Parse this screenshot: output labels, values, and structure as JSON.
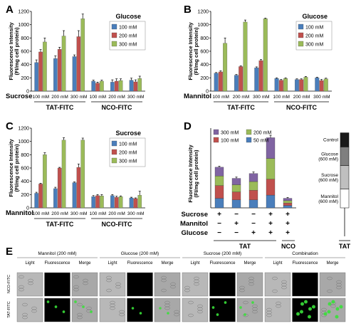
{
  "chart_data": [
    {
      "panel": "A",
      "type": "bar",
      "ylabel": "Fluorescence Intensity",
      "ylabel2": "(FI/mg cell protein)",
      "ylim": [
        0,
        1200
      ],
      "yticks": [
        "0",
        "200",
        "400",
        "600",
        "800",
        "1000",
        "1200"
      ],
      "legend_title": "Glucose",
      "series": [
        {
          "name": "100 mM",
          "color": "#4a7ebb",
          "values": [
            430,
            490,
            520,
            150,
            135,
            165
          ],
          "errors": [
            40,
            40,
            25,
            15,
            35,
            30
          ]
        },
        {
          "name": "200 mM",
          "color": "#c0504d",
          "values": [
            590,
            630,
            820,
            120,
            150,
            140
          ],
          "errors": [
            35,
            30,
            90,
            15,
            35,
            30
          ]
        },
        {
          "name": "300 mM",
          "color": "#9bbb59",
          "values": [
            740,
            830,
            1090,
            150,
            160,
            190
          ],
          "errors": [
            60,
            80,
            70,
            15,
            25,
            35
          ]
        }
      ],
      "categories": [
        "100 mM",
        "200 mM",
        "300 mM",
        "100 mM",
        "200 mM",
        "300 mM"
      ],
      "row_label": "Sucrose",
      "groups": [
        "TAT-FITC",
        "NCO-FITC"
      ]
    },
    {
      "panel": "B",
      "type": "bar",
      "ylabel": "Fluorescence Intensity",
      "ylabel2": "(FI/mg cell protein)",
      "ylim": [
        0,
        1200
      ],
      "yticks": [
        "0",
        "200",
        "400",
        "600",
        "800",
        "1000",
        "1200"
      ],
      "legend_title": "Glucose",
      "series": [
        {
          "name": "100 mM",
          "color": "#4a7ebb",
          "values": [
            270,
            240,
            350,
            190,
            175,
            200
          ],
          "errors": [
            10,
            10,
            15,
            10,
            10,
            10
          ]
        },
        {
          "name": "200 mM",
          "color": "#c0504d",
          "values": [
            290,
            370,
            460,
            165,
            175,
            160
          ],
          "errors": [
            15,
            10,
            15,
            10,
            10,
            15
          ]
        },
        {
          "name": "300 mM",
          "color": "#9bbb59",
          "values": [
            720,
            1040,
            1090,
            190,
            210,
            185
          ],
          "errors": [
            80,
            30,
            10,
            10,
            10,
            10
          ]
        }
      ],
      "categories": [
        "100 mM",
        "200 mM",
        "300 mM",
        "100 mM",
        "200 mM",
        "300 mM"
      ],
      "row_label": "Mannitol",
      "groups": [
        "TAT-FITC",
        "NCO-FITC"
      ]
    },
    {
      "panel": "C",
      "type": "bar",
      "ylabel": "Fluorescence Intensity",
      "ylabel2": "(FI/mg cell protein)",
      "ylim": [
        0,
        1200
      ],
      "yticks": [
        "0",
        "200",
        "400",
        "600",
        "800",
        "1000",
        "1200"
      ],
      "legend_title": "Sucrose",
      "series": [
        {
          "name": "100 mM",
          "color": "#4a7ebb",
          "values": [
            220,
            290,
            380,
            170,
            185,
            150
          ],
          "errors": [
            15,
            20,
            10,
            15,
            15,
            10
          ]
        },
        {
          "name": "200 mM",
          "color": "#c0504d",
          "values": [
            360,
            600,
            610,
            185,
            160,
            140
          ],
          "errors": [
            10,
            10,
            50,
            15,
            15,
            10
          ]
        },
        {
          "name": "300 mM",
          "color": "#9bbb59",
          "values": [
            800,
            1020,
            1020,
            180,
            170,
            190
          ],
          "errors": [
            30,
            35,
            30,
            20,
            10,
            60
          ]
        }
      ],
      "categories": [
        "100 mM",
        "200 mM",
        "300 mM",
        "100 mM",
        "200 mM",
        "300 mM"
      ],
      "row_label": "Mannitol",
      "groups": [
        "TAT-FITC",
        "NCO-FITC"
      ]
    },
    {
      "panel": "D",
      "type": "bar",
      "stacked": true,
      "ylabel": "Fluorescence Intensity",
      "ylabel2": "(FI/mg cell protein)",
      "ylim": [
        0,
        5000
      ],
      "series": [
        {
          "name": "50 mM",
          "color": "#4a7ebb",
          "values": [
            600,
            500,
            500,
            800,
            150
          ]
        },
        {
          "name": "100 mM",
          "color": "#c0504d",
          "values": [
            800,
            500,
            600,
            1000,
            150
          ]
        },
        {
          "name": "200 mM",
          "color": "#9bbb59",
          "values": [
            600,
            450,
            550,
            1300,
            150
          ]
        },
        {
          "name": "300 mM",
          "color": "#8064a2",
          "values": [
            550,
            400,
            500,
            1300,
            150
          ]
        }
      ],
      "errors": [
        60,
        80,
        100,
        150,
        50
      ],
      "control_stack": [
        {
          "name": "Mannitol (600 mM)",
          "color": "#ffffff",
          "value": 800
        },
        {
          "name": "Sucrose (600 mM)",
          "color": "#bfbfbf",
          "value": 1000
        },
        {
          "name": "Glucose (600 mM)",
          "color": "#7f7f7f",
          "value": 800
        },
        {
          "name": "Control",
          "color": "#1a1a1a",
          "value": 600
        }
      ],
      "rows": [
        {
          "label": "Sucrose",
          "marks": [
            "+",
            "−",
            "−",
            "+",
            "+"
          ]
        },
        {
          "label": "Mannitol",
          "marks": [
            "−",
            "+",
            "−",
            "+",
            "+"
          ]
        },
        {
          "label": "Glucose",
          "marks": [
            "−",
            "−",
            "+",
            "+",
            "+"
          ]
        }
      ],
      "groups": [
        "TAT",
        "NCO",
        "TAT"
      ]
    }
  ],
  "panel_labels": [
    "A",
    "B",
    "C",
    "D",
    "E"
  ],
  "micrographs": {
    "sections": [
      "Mannitol (200 mM)",
      "Glucose (200 mM)",
      "Sucrose (200 mM)",
      "Combination"
    ],
    "columns": [
      "Light",
      "Fluorescence",
      "Merge"
    ],
    "rows": [
      "NCO-FITC",
      "TAT-FITC"
    ],
    "fluor_intensity": [
      [
        0.05,
        0.05,
        0.08,
        0.08
      ],
      [
        0.35,
        0.3,
        0.35,
        0.9
      ]
    ]
  }
}
